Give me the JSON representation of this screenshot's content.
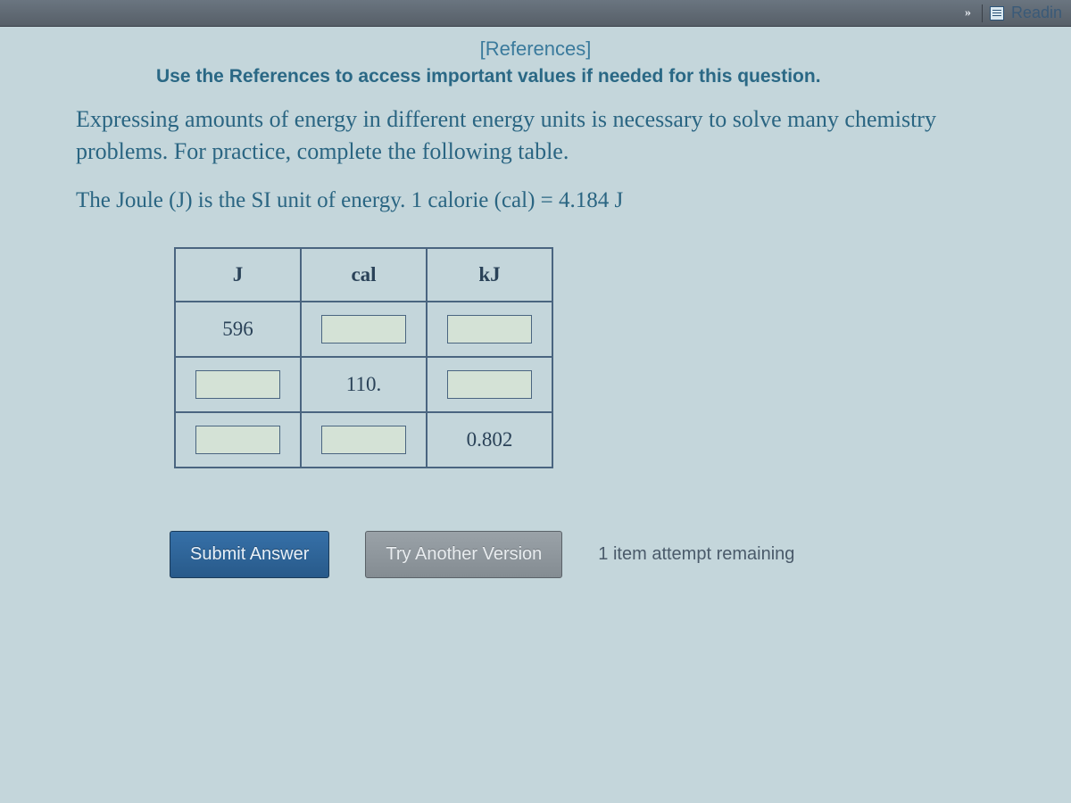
{
  "topbar": {
    "chevron": "»",
    "reading_label": "Readin"
  },
  "references": {
    "link_text": "[References]",
    "hint": "Use the References to access important values if needed for this question."
  },
  "question": {
    "paragraph": "Expressing amounts of energy in different energy units is necessary to solve many chemistry problems. For practice, complete the following table.",
    "note": "The Joule (J) is the SI unit of energy. 1 calorie (cal) = 4.184 J"
  },
  "table": {
    "headers": [
      "J",
      "cal",
      "kJ"
    ],
    "rows": [
      {
        "J": "596",
        "cal": "",
        "kJ": ""
      },
      {
        "J": "",
        "cal": "110.",
        "kJ": ""
      },
      {
        "J": "",
        "cal": "",
        "kJ": "0.802"
      }
    ]
  },
  "buttons": {
    "submit": "Submit Answer",
    "try_another": "Try Another Version",
    "attempts": "1 item attempt remaining"
  }
}
